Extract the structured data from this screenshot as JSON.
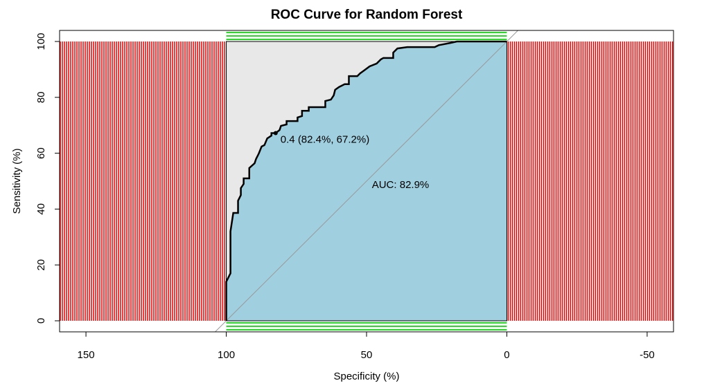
{
  "chart_data": {
    "type": "roc",
    "title": "ROC Curve for Random Forest",
    "x_label": "Specificity (%)",
    "y_label": "Sensitivity (%)",
    "xlim": [
      159.4,
      -59.4
    ],
    "ylim": [
      -3.96,
      103.96
    ],
    "xticks": [
      150,
      100,
      50,
      0,
      -50
    ],
    "yticks": [
      0,
      20,
      40,
      60,
      80,
      100
    ],
    "series": [
      {
        "color": "#000000",
        "fill_color": "#a0cfe0",
        "x": [
          100,
          100,
          98.5,
          98.5,
          97.5,
          95.8,
          95.8,
          94.8,
          94.8,
          93.8,
          93.8,
          91.8,
          91.8,
          89.9,
          89.4,
          88.4,
          87.4,
          86.4,
          85.4,
          83.9,
          83.9,
          82.4,
          81,
          80.5,
          78.5,
          78.5,
          74.6,
          74.6,
          73,
          73,
          70.6,
          70.6,
          64.7,
          64.7,
          62.7,
          61.7,
          61.2,
          59.8,
          57.8,
          56.3,
          56.3,
          53.3,
          52.3,
          50.9,
          48.9,
          46.4,
          44.9,
          44,
          40.5,
          40.5,
          39,
          35.5,
          25.7,
          24.2,
          20,
          17.8,
          0
        ],
        "values": [
          0,
          14,
          17,
          32,
          38.6,
          38.6,
          43,
          45,
          47.5,
          49,
          51,
          51,
          54.7,
          56.4,
          57.9,
          59.9,
          62.4,
          62.9,
          65.3,
          66.3,
          67.2,
          67.2,
          68.3,
          69.8,
          70.3,
          71.5,
          71.5,
          72.8,
          73.3,
          75.2,
          75.2,
          76.5,
          76.5,
          78.7,
          79.2,
          80.7,
          82.7,
          83.7,
          84.7,
          84.7,
          87.6,
          87.6,
          88.6,
          89.6,
          91.1,
          92.1,
          93.6,
          94.1,
          94.1,
          96,
          97.5,
          98,
          98,
          98.7,
          99.5,
          100,
          100
        ]
      }
    ],
    "threshold": {
      "x": 82.4,
      "y": 67.2,
      "label": "0.4 (82.4%, 67.2%)"
    },
    "auc_label": "AUC: 82.9%",
    "max_auc_polygon_color": "#e8e8e8",
    "diagonal_color": "#999999",
    "outside_hatch_color": "#dd0000",
    "edge_hatch_color": "#22dd22"
  }
}
